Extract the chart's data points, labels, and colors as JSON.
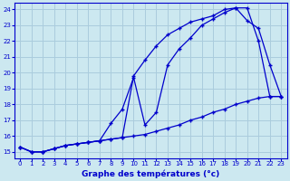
{
  "xlabel": "Graphe des températures (°c)",
  "bg_color": "#cce8f0",
  "grid_color": "#aaccdd",
  "line_color": "#0000cc",
  "xlim": [
    -0.5,
    23.5
  ],
  "ylim": [
    14.6,
    24.4
  ],
  "yticks": [
    15,
    16,
    17,
    18,
    19,
    20,
    21,
    22,
    23,
    24
  ],
  "xticks": [
    0,
    1,
    2,
    3,
    4,
    5,
    6,
    7,
    8,
    9,
    10,
    11,
    12,
    13,
    14,
    15,
    16,
    17,
    18,
    19,
    20,
    21,
    22,
    23
  ],
  "line1_x": [
    0,
    1,
    2,
    3,
    4,
    5,
    6,
    7,
    8,
    9,
    10,
    11,
    12,
    13,
    14,
    15,
    16,
    17,
    18,
    19,
    20,
    21,
    22,
    23
  ],
  "line1_y": [
    15.3,
    15.0,
    15.0,
    15.2,
    15.4,
    15.5,
    15.6,
    15.7,
    15.8,
    15.9,
    16.0,
    16.1,
    16.3,
    16.5,
    16.7,
    17.0,
    17.2,
    17.5,
    17.7,
    18.0,
    18.2,
    18.4,
    18.5,
    18.5
  ],
  "line2_x": [
    0,
    1,
    2,
    3,
    4,
    5,
    6,
    7,
    8,
    9,
    10,
    11,
    12,
    13,
    14,
    15,
    16,
    17,
    18,
    19,
    20,
    21,
    22,
    23
  ],
  "line2_y": [
    15.3,
    15.0,
    15.0,
    15.2,
    15.4,
    15.5,
    15.6,
    15.7,
    15.8,
    15.9,
    19.8,
    20.8,
    21.7,
    22.4,
    22.8,
    23.2,
    23.4,
    23.6,
    24.0,
    24.1,
    23.3,
    22.8,
    20.5,
    18.5
  ],
  "line3_x": [
    0,
    1,
    2,
    3,
    4,
    5,
    6,
    7,
    8,
    9,
    10,
    11,
    12,
    13,
    14,
    15,
    16,
    17,
    18,
    19,
    20,
    21,
    22,
    23
  ],
  "line3_y": [
    15.3,
    15.0,
    15.0,
    15.2,
    15.4,
    15.5,
    15.6,
    15.7,
    16.8,
    17.7,
    19.7,
    16.7,
    17.5,
    20.5,
    21.5,
    22.2,
    23.0,
    23.4,
    23.8,
    24.1,
    24.1,
    22.0,
    18.5,
    18.5
  ]
}
